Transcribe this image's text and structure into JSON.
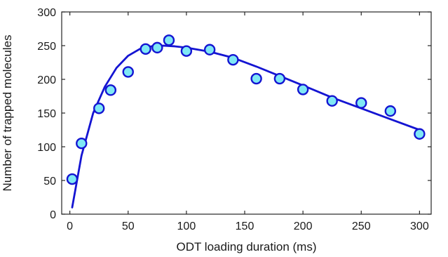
{
  "chart_data": {
    "type": "scatter",
    "title": "",
    "xlabel": "ODT loading duration (ms)",
    "ylabel": "Number of trapped molecules",
    "xlim": [
      -7,
      310
    ],
    "ylim": [
      0,
      300
    ],
    "xticks": [
      0,
      50,
      100,
      150,
      200,
      250,
      300
    ],
    "yticks": [
      0,
      50,
      100,
      150,
      200,
      250,
      300
    ],
    "grid": false,
    "legend": "none",
    "series": [
      {
        "type": "scatter",
        "x": [
          2,
          10,
          25,
          35,
          50,
          65,
          75,
          85,
          100,
          120,
          140,
          160,
          180,
          200,
          225,
          250,
          275,
          300
        ],
        "y": [
          52,
          105,
          157,
          184,
          211,
          245,
          247,
          258,
          242,
          244,
          229,
          201,
          201,
          185,
          168,
          165,
          153,
          119
        ],
        "marker_fill": "#7fe8f5",
        "marker_edge": "#1414d2"
      },
      {
        "type": "line",
        "x": [
          2,
          10,
          20,
          30,
          40,
          50,
          60,
          70,
          80,
          90,
          100,
          120,
          140,
          160,
          180,
          200,
          225,
          250,
          275,
          300
        ],
        "y": [
          10,
          87,
          150,
          189,
          217,
          235,
          245,
          249,
          250,
          249,
          247,
          241,
          232,
          219,
          205,
          191,
          173,
          157,
          141,
          125
        ],
        "color": "#1414d2"
      }
    ]
  }
}
